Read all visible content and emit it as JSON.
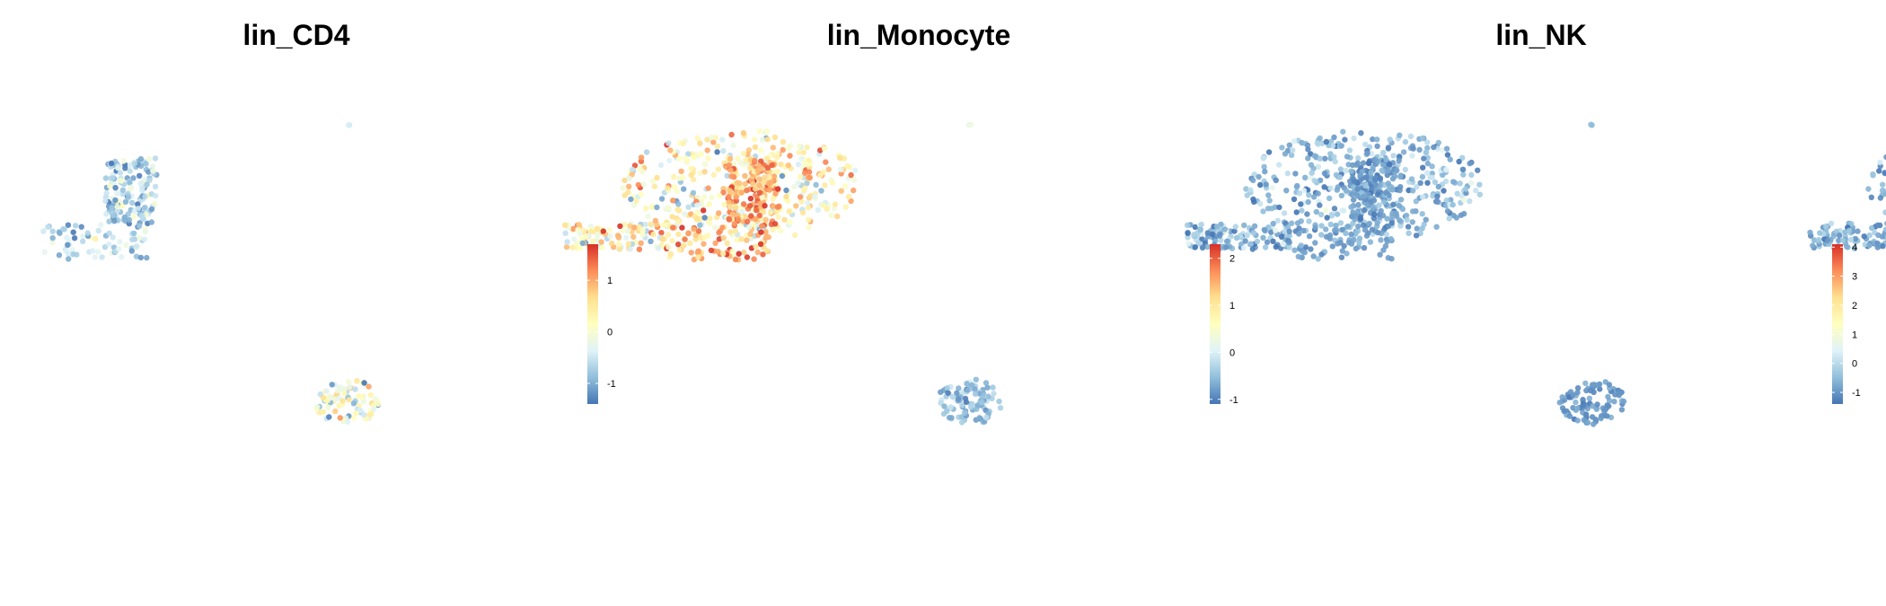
{
  "chart_data": [
    {
      "type": "scatter",
      "title": "lin_CD4",
      "colorbar": {
        "ticks": [
          1,
          0,
          -1
        ],
        "range": [
          -1.4,
          1.7
        ]
      },
      "clusters": [
        {
          "name": "left",
          "cx": -9.5,
          "cy": 5.5,
          "w": 3.5,
          "h": 10,
          "spread": 1.8,
          "mean": -0.7,
          "sd": 0.35,
          "n": 230
        },
        {
          "name": "right",
          "cx": 11.5,
          "cy": 7.8,
          "w": 8,
          "h": 11,
          "spread": 1.6,
          "mean": 0.3,
          "sd": 0.6,
          "n": 520
        },
        {
          "name": "bottom",
          "cx": -1.8,
          "cy": -13.5,
          "w": 2.2,
          "h": 4.5,
          "spread": 1.4,
          "mean": -0.2,
          "sd": 0.55,
          "n": 95
        },
        {
          "name": "isolated",
          "cx": -1.8,
          "cy": 13.8,
          "w": 0.2,
          "h": 0.2,
          "spread": 1,
          "mean": -0.6,
          "sd": 0.1,
          "n": 2
        }
      ]
    },
    {
      "type": "scatter",
      "title": "lin_Monocyte",
      "colorbar": {
        "ticks": [
          2,
          1,
          0,
          -1
        ],
        "range": [
          -1.1,
          2.3
        ]
      },
      "clusters": [
        {
          "name": "left",
          "cx": -9.5,
          "cy": 5.5,
          "w": 3.5,
          "h": 10,
          "spread": 1.8,
          "mean": 1.5,
          "sd": 0.5,
          "n": 230
        },
        {
          "name": "right",
          "cx": 11.5,
          "cy": 7.8,
          "w": 8,
          "h": 11,
          "spread": 1.6,
          "mean": -0.6,
          "sd": 0.35,
          "n": 520
        },
        {
          "name": "bottom",
          "cx": -1.8,
          "cy": -13.5,
          "w": 2.2,
          "h": 4.5,
          "spread": 1.4,
          "mean": -0.5,
          "sd": 0.3,
          "n": 95
        },
        {
          "name": "isolated",
          "cx": -1.8,
          "cy": 13.8,
          "w": 0.2,
          "h": 0.2,
          "spread": 1,
          "mean": 0.2,
          "sd": 0.1,
          "n": 2
        }
      ]
    },
    {
      "type": "scatter",
      "title": "lin_NK",
      "colorbar": {
        "ticks": [
          4,
          3,
          2,
          1,
          0,
          -1
        ],
        "range": [
          -1.4,
          4.1
        ]
      },
      "clusters": [
        {
          "name": "left",
          "cx": -9.5,
          "cy": 5.5,
          "w": 3.5,
          "h": 10,
          "spread": 1.8,
          "mean": -0.9,
          "sd": 0.25,
          "n": 230
        },
        {
          "name": "right",
          "cx": 11.5,
          "cy": 7.8,
          "w": 8,
          "h": 11,
          "spread": 1.6,
          "mean": -0.7,
          "sd": 0.4,
          "n": 520
        },
        {
          "name": "bottom",
          "cx": -1.8,
          "cy": -13.5,
          "w": 2.2,
          "h": 4.5,
          "spread": 1.4,
          "mean": -1.0,
          "sd": 0.2,
          "n": 95
        },
        {
          "name": "isolated",
          "cx": -1.8,
          "cy": 13.8,
          "w": 0.2,
          "h": 0.2,
          "spread": 1,
          "mean": -0.5,
          "sd": 0.1,
          "n": 2
        }
      ]
    }
  ],
  "colors": {
    "scale": [
      "#4575b4",
      "#91bfdb",
      "#e0f3f8",
      "#ffffbf",
      "#fee090",
      "#fc8d59",
      "#d73027"
    ]
  }
}
